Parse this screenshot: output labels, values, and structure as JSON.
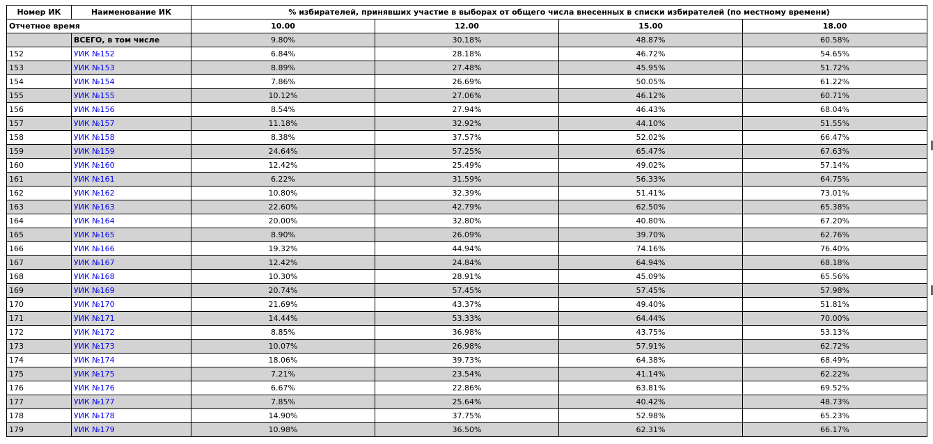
{
  "header": {
    "col_number": "Номер ИК",
    "col_name": "Наименование ИК",
    "col_percent": "% избирателей, принявших участие в выборах от общего числа внесенных в списки избирателей (по местному времени)",
    "report_time_label": "Отчетное время",
    "times": [
      "10.00",
      "12.00",
      "15.00",
      "18.00"
    ]
  },
  "total": {
    "label": "ВСЕГО, в том числе",
    "values": [
      "9.80%",
      "30.18%",
      "48.87%",
      "60.58%"
    ]
  },
  "rows": [
    {
      "num": "152",
      "name": "УИК №152",
      "values": [
        "6.84%",
        "28.18%",
        "46.72%",
        "54.65%"
      ]
    },
    {
      "num": "153",
      "name": "УИК №153",
      "values": [
        "8.89%",
        "27.48%",
        "45.95%",
        "51.72%"
      ]
    },
    {
      "num": "154",
      "name": "УИК №154",
      "values": [
        "7.86%",
        "26.69%",
        "50.05%",
        "61.22%"
      ]
    },
    {
      "num": "155",
      "name": "УИК №155",
      "values": [
        "10.12%",
        "27.06%",
        "46.12%",
        "60.71%"
      ]
    },
    {
      "num": "156",
      "name": "УИК №156",
      "values": [
        "8.54%",
        "27.94%",
        "46.43%",
        "68.04%"
      ]
    },
    {
      "num": "157",
      "name": "УИК №157",
      "values": [
        "11.18%",
        "32.92%",
        "44.10%",
        "51.55%"
      ]
    },
    {
      "num": "158",
      "name": "УИК №158",
      "values": [
        "8.38%",
        "37.57%",
        "52.02%",
        "66.47%"
      ]
    },
    {
      "num": "159",
      "name": "УИК №159",
      "values": [
        "24.64%",
        "57.25%",
        "65.47%",
        "67.63%"
      ]
    },
    {
      "num": "160",
      "name": "УИК №160",
      "values": [
        "12.42%",
        "25.49%",
        "49.02%",
        "57.14%"
      ]
    },
    {
      "num": "161",
      "name": "УИК №161",
      "values": [
        "6.22%",
        "31.59%",
        "56.33%",
        "64.75%"
      ]
    },
    {
      "num": "162",
      "name": "УИК №162",
      "values": [
        "10.80%",
        "32.39%",
        "51.41%",
        "73.01%"
      ]
    },
    {
      "num": "163",
      "name": "УИК №163",
      "values": [
        "22.60%",
        "42.79%",
        "62.50%",
        "65.38%"
      ]
    },
    {
      "num": "164",
      "name": "УИК №164",
      "values": [
        "20.00%",
        "32.80%",
        "40.80%",
        "67.20%"
      ]
    },
    {
      "num": "165",
      "name": "УИК №165",
      "values": [
        "8.90%",
        "26.09%",
        "39.70%",
        "62.76%"
      ]
    },
    {
      "num": "166",
      "name": "УИК №166",
      "values": [
        "19.32%",
        "44.94%",
        "74.16%",
        "76.40%"
      ]
    },
    {
      "num": "167",
      "name": "УИК №167",
      "values": [
        "12.42%",
        "24.84%",
        "64.94%",
        "68.18%"
      ]
    },
    {
      "num": "168",
      "name": "УИК №168",
      "values": [
        "10.30%",
        "28.91%",
        "45.09%",
        "65.56%"
      ]
    },
    {
      "num": "169",
      "name": "УИК №169",
      "values": [
        "20.74%",
        "57.45%",
        "57.45%",
        "57.98%"
      ]
    },
    {
      "num": "170",
      "name": "УИК №170",
      "values": [
        "21.69%",
        "43.37%",
        "49.40%",
        "51.81%"
      ]
    },
    {
      "num": "171",
      "name": "УИК №171",
      "values": [
        "14.44%",
        "53.33%",
        "64.44%",
        "70.00%"
      ]
    },
    {
      "num": "172",
      "name": "УИК №172",
      "values": [
        "8.85%",
        "36.98%",
        "43.75%",
        "53.13%"
      ]
    },
    {
      "num": "173",
      "name": "УИК №173",
      "values": [
        "10.07%",
        "26.98%",
        "57.91%",
        "62.72%"
      ]
    },
    {
      "num": "174",
      "name": "УИК №174",
      "values": [
        "18.06%",
        "39.73%",
        "64.38%",
        "68.49%"
      ]
    },
    {
      "num": "175",
      "name": "УИК №175",
      "values": [
        "7.21%",
        "23.54%",
        "41.14%",
        "62.22%"
      ]
    },
    {
      "num": "176",
      "name": "УИК №176",
      "values": [
        "6.67%",
        "22.86%",
        "63.81%",
        "69.52%"
      ]
    },
    {
      "num": "177",
      "name": "УИК №177",
      "values": [
        "7.85%",
        "25.64%",
        "40.42%",
        "48.73%"
      ]
    },
    {
      "num": "178",
      "name": "УИК №178",
      "values": [
        "14.90%",
        "37.75%",
        "52.98%",
        "65.23%"
      ]
    },
    {
      "num": "179",
      "name": "УИК №179",
      "values": [
        "10.98%",
        "36.50%",
        "62.31%",
        "66.17%"
      ]
    }
  ],
  "colors": {
    "stripe": "#d3d3d3",
    "link": "#0000ee",
    "border": "#000000"
  }
}
